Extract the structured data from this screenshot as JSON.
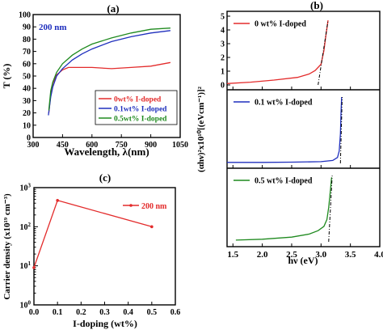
{
  "panels": {
    "a": {
      "label": "(a)"
    },
    "b": {
      "label": "(b)"
    },
    "c": {
      "label": "(c)"
    }
  },
  "colors": {
    "red": "#e32b2b",
    "blue": "#1f2fbd",
    "green": "#1f8a1f",
    "dash": "#000000"
  },
  "chart_data": [
    {
      "id": "a",
      "type": "line",
      "title": "",
      "annotation": "200 nm",
      "xlabel": "Wavelength, λ(nm)",
      "ylabel": "T (%)",
      "xlim": [
        300,
        1050
      ],
      "ylim": [
        0,
        100
      ],
      "xticks": [
        300,
        450,
        600,
        750,
        900,
        1050
      ],
      "yticks": [
        0,
        10,
        20,
        30,
        40,
        50,
        60,
        70,
        80,
        90,
        100
      ],
      "legend_position": "bottom-right",
      "series": [
        {
          "name": "0wt% I-doped",
          "color": "red",
          "x": [
            380,
            390,
            400,
            420,
            450,
            480,
            520,
            600,
            700,
            800,
            900,
            1000
          ],
          "y": [
            20,
            35,
            44,
            51,
            55,
            57,
            57,
            57,
            56,
            57,
            58,
            61
          ]
        },
        {
          "name": "0.1wt% I-doped",
          "color": "blue",
          "x": [
            378,
            390,
            400,
            420,
            450,
            500,
            550,
            600,
            700,
            800,
            900,
            1000
          ],
          "y": [
            18,
            33,
            41,
            50,
            56,
            63,
            68,
            72,
            78,
            82,
            85,
            87
          ]
        },
        {
          "name": "0.5wt% I-doped",
          "color": "green",
          "x": [
            380,
            390,
            400,
            420,
            450,
            500,
            550,
            600,
            700,
            800,
            900,
            1000
          ],
          "y": [
            22,
            38,
            45,
            53,
            60,
            67,
            72,
            76,
            81,
            85,
            88,
            89
          ]
        }
      ]
    },
    {
      "id": "b",
      "type": "line",
      "title": "",
      "xlabel": "hν (eV)",
      "ylabel": "(αhν)²x10¹⁰[(eVcm⁻¹)]²",
      "xlim": [
        1.4,
        4.0
      ],
      "xticks": [
        1.5,
        2.0,
        2.5,
        3.0,
        3.5,
        4.0
      ],
      "subplots": [
        {
          "name": "0 wt% I-doped",
          "color": "red",
          "ylim": [
            0,
            5
          ],
          "yticks": [
            0,
            1,
            2,
            3,
            4,
            5
          ],
          "x": [
            1.4,
            1.8,
            2.2,
            2.6,
            2.8,
            2.9,
            3.0,
            3.05,
            3.08,
            3.12
          ],
          "y": [
            0.1,
            0.2,
            0.35,
            0.55,
            0.8,
            1.05,
            1.5,
            2.5,
            3.5,
            4.7
          ],
          "fit_x": [
            2.95,
            3.12
          ],
          "fit_y": [
            0,
            4.7
          ]
        },
        {
          "name": "0.1 wt% I-doped",
          "color": "blue",
          "ylim": [
            0,
            14
          ],
          "x": [
            1.4,
            2.0,
            2.5,
            3.0,
            3.2,
            3.28,
            3.31,
            3.33,
            3.34,
            3.35
          ],
          "y": [
            0.2,
            0.2,
            0.25,
            0.35,
            0.6,
            1.2,
            2.5,
            6.0,
            10.0,
            13.5
          ],
          "fit_x": [
            3.33,
            3.36
          ],
          "fit_y": [
            0,
            13.5
          ]
        },
        {
          "name": "0.5 wt% I-doped",
          "color": "green",
          "ylim": [
            0,
            8
          ],
          "x": [
            1.55,
            2.0,
            2.5,
            2.8,
            2.95,
            3.05,
            3.1,
            3.13,
            3.16,
            3.18
          ],
          "y": [
            0.2,
            0.3,
            0.55,
            0.9,
            1.3,
            1.8,
            2.6,
            4.0,
            6.0,
            7.5
          ],
          "fit_x": [
            3.13,
            3.19
          ],
          "fit_y": [
            0,
            7.7
          ]
        }
      ]
    },
    {
      "id": "c",
      "type": "line",
      "title": "",
      "xlabel": "I-doping (wt%)",
      "ylabel": "Carrier density (x10¹⁹ cm⁻³)",
      "xlim": [
        0,
        0.6
      ],
      "xticks": [
        0.0,
        0.1,
        0.2,
        0.3,
        0.4,
        0.5,
        0.6
      ],
      "ylim_log": [
        1,
        1000
      ],
      "yscale": "log",
      "yticks": [
        1,
        10,
        100,
        1000
      ],
      "legend_position": "top-right",
      "series": [
        {
          "name": "200 nm",
          "color": "red",
          "x": [
            0.0,
            0.1,
            0.5
          ],
          "y": [
            9,
            470,
            100
          ]
        }
      ]
    }
  ]
}
